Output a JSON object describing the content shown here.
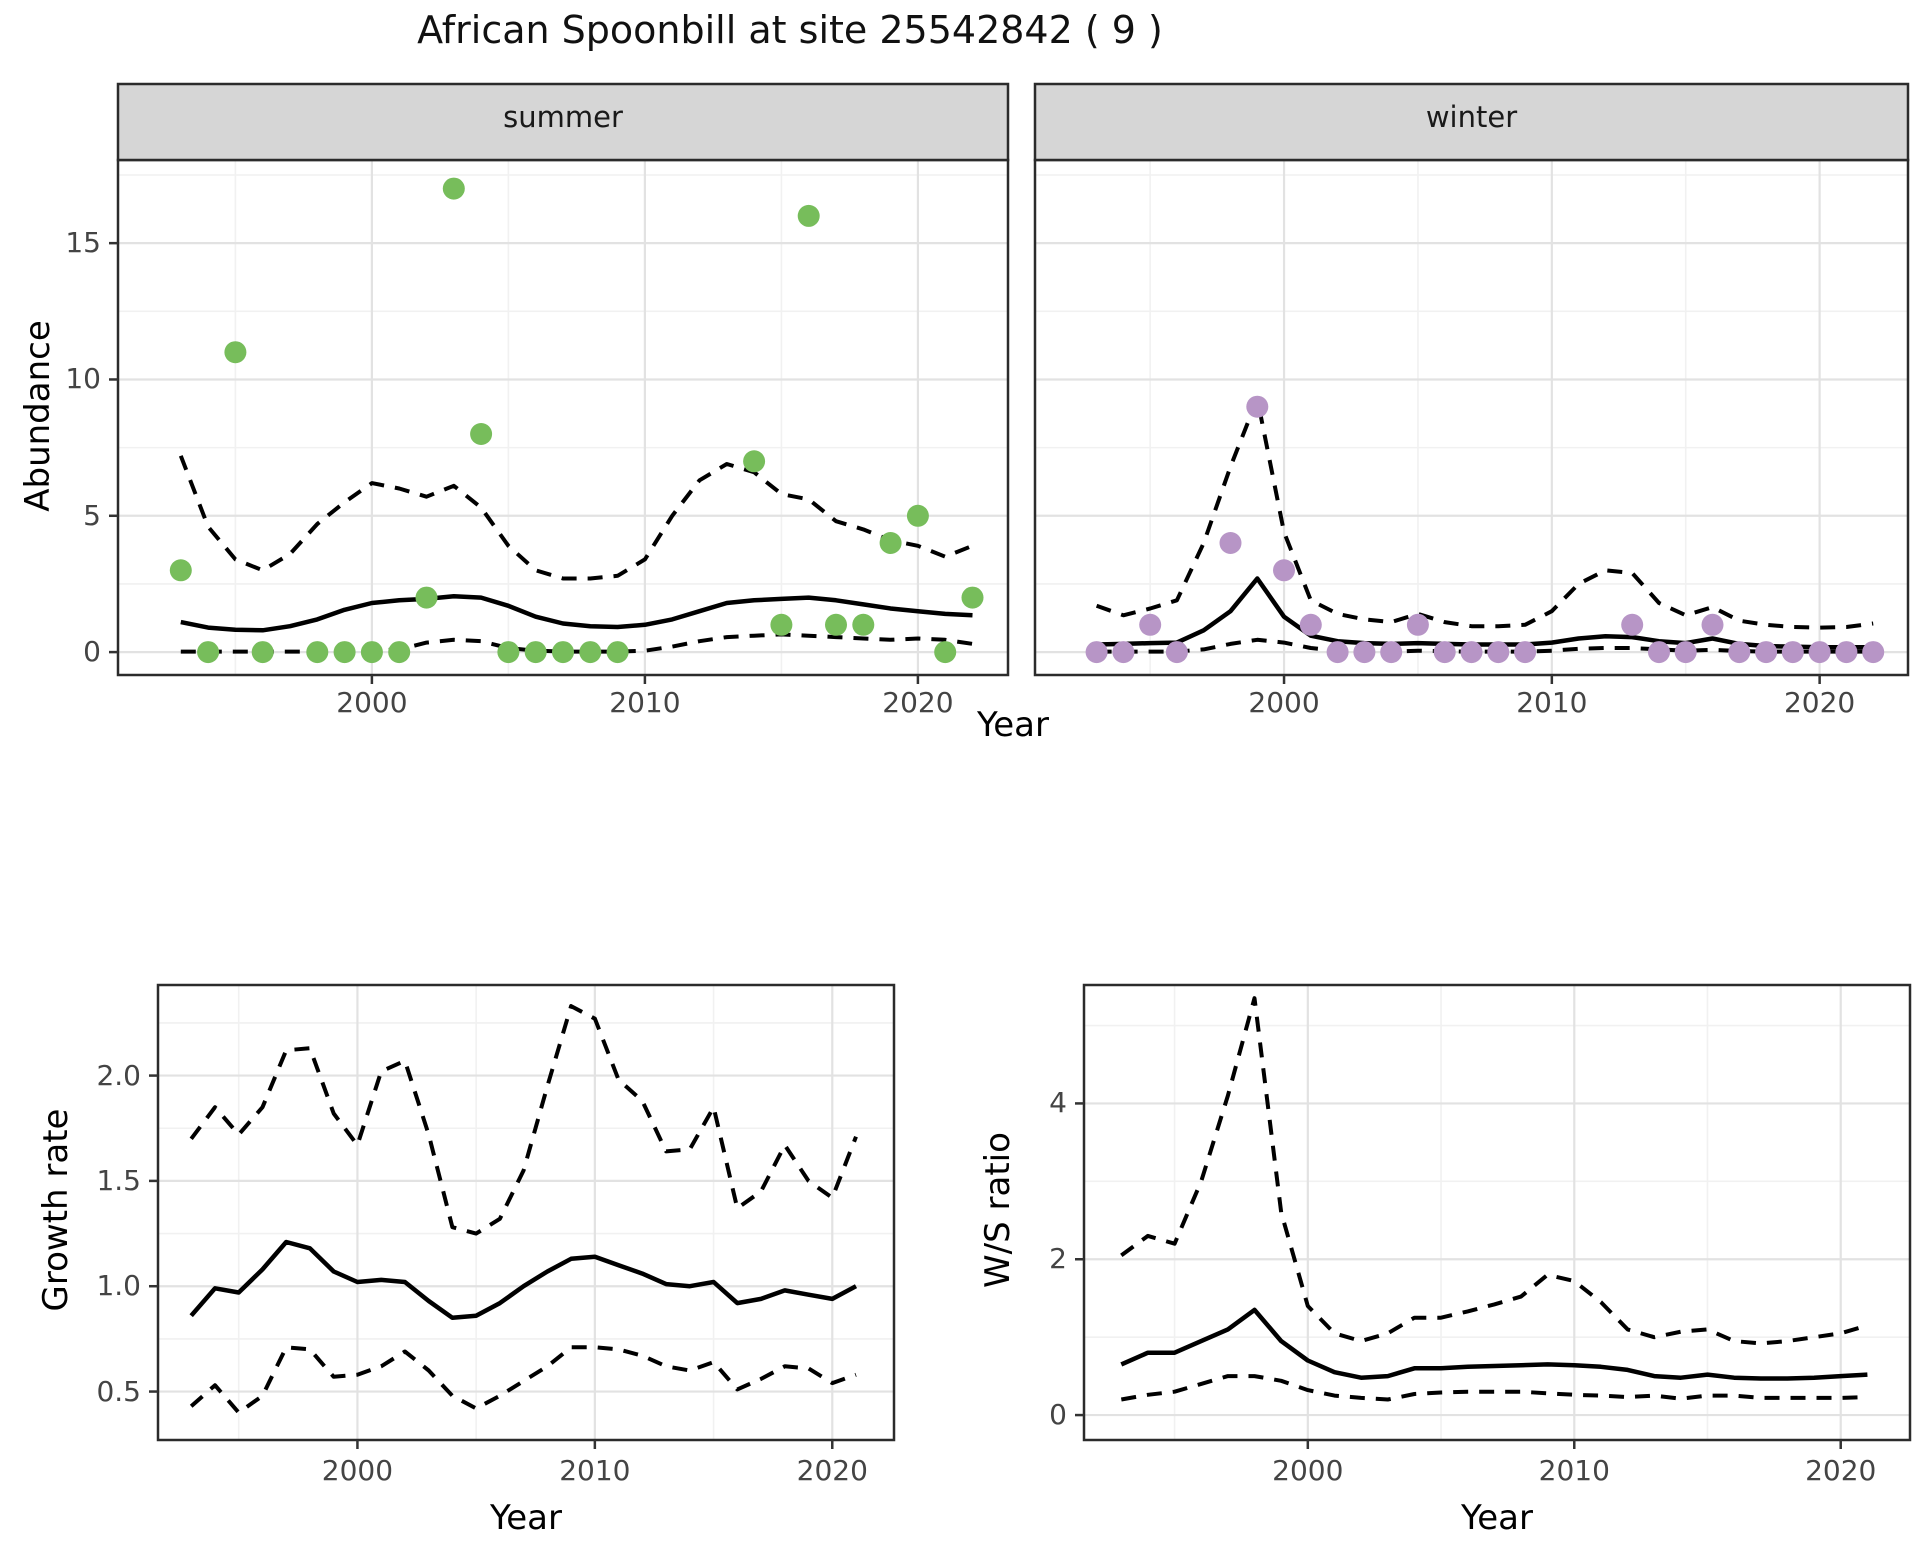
{
  "title": "African Spoonbill at site 25542842 ( 9 )",
  "colors": {
    "summer_point": "#77bd5b",
    "winter_point": "#b795c6",
    "strip_bg": "#d6d6d6",
    "panel_bg": "#ffffff",
    "grid_major": "#e2e2e2",
    "grid_minor": "#f1f1f1",
    "panel_border": "#2b2b2b",
    "tick_mark": "#333333",
    "axis_text": "#444444",
    "line": "#000000"
  },
  "chart_data": [
    {
      "id": "abundance-summer",
      "type": "scatter",
      "facet_label": "summer",
      "xlabel": "Year",
      "ylabel": "Abundance",
      "xlim": [
        1990.7,
        2023.3
      ],
      "ylim": [
        -0.84,
        18.05
      ],
      "x_ticks": {
        "values": [
          2000,
          2010,
          2020
        ],
        "labels": [
          "2000",
          "2010",
          "2020"
        ]
      },
      "x_minor": [
        1995,
        2005,
        2015
      ],
      "y_ticks": {
        "values": [
          0,
          5,
          10,
          15
        ],
        "labels": [
          "0",
          "5",
          "10",
          "15"
        ]
      },
      "y_minor": [
        2.5,
        7.5,
        12.5,
        17.5
      ],
      "points": {
        "years": [
          1993,
          1994,
          1995,
          1996,
          1998,
          1999,
          2000,
          2001,
          2002,
          2003,
          2004,
          2005,
          2006,
          2007,
          2008,
          2009,
          2014,
          2015,
          2016,
          2017,
          2018,
          2019,
          2020,
          2021,
          2022
        ],
        "values": [
          3,
          0,
          11,
          0,
          0,
          0,
          0,
          0,
          2,
          17,
          8,
          0,
          0,
          0,
          0,
          0,
          7,
          1,
          16,
          1,
          1,
          4,
          5,
          0,
          2
        ]
      },
      "lines": {
        "years": [
          1993,
          1994,
          1995,
          1996,
          1997,
          1998,
          1999,
          2000,
          2001,
          2002,
          2003,
          2004,
          2005,
          2006,
          2007,
          2008,
          2009,
          2010,
          2011,
          2012,
          2013,
          2014,
          2015,
          2016,
          2017,
          2018,
          2019,
          2020,
          2021,
          2022
        ],
        "mean": [
          1.1,
          0.9,
          0.82,
          0.8,
          0.95,
          1.2,
          1.55,
          1.8,
          1.9,
          1.95,
          2.05,
          2.0,
          1.7,
          1.3,
          1.05,
          0.95,
          0.92,
          1.0,
          1.2,
          1.5,
          1.8,
          1.9,
          1.95,
          2.0,
          1.9,
          1.75,
          1.6,
          1.5,
          1.4,
          1.35
        ],
        "upper": [
          7.2,
          4.6,
          3.4,
          3.0,
          3.6,
          4.7,
          5.5,
          6.2,
          6.0,
          5.7,
          6.1,
          5.3,
          3.9,
          3.0,
          2.7,
          2.7,
          2.8,
          3.4,
          5.0,
          6.3,
          6.9,
          6.6,
          5.8,
          5.6,
          4.8,
          4.5,
          4.1,
          3.9,
          3.5,
          3.9
        ],
        "lower": [
          0.02,
          0.02,
          0.02,
          0.02,
          0.02,
          0.02,
          0.02,
          0.05,
          0.1,
          0.35,
          0.45,
          0.4,
          0.15,
          0.05,
          0.02,
          0.02,
          0.02,
          0.05,
          0.2,
          0.4,
          0.55,
          0.6,
          0.65,
          0.6,
          0.55,
          0.5,
          0.45,
          0.5,
          0.45,
          0.3
        ]
      }
    },
    {
      "id": "abundance-winter",
      "type": "scatter",
      "facet_label": "winter",
      "xlabel": "Year",
      "ylabel": "Abundance",
      "xlim": [
        1990.7,
        2023.3
      ],
      "ylim": [
        -0.84,
        18.05
      ],
      "x_ticks": {
        "values": [
          2000,
          2010,
          2020
        ],
        "labels": [
          "2000",
          "2010",
          "2020"
        ]
      },
      "x_minor": [
        1995,
        2005,
        2015
      ],
      "y_ticks": {
        "values": [
          0,
          5,
          10,
          15
        ],
        "labels": [
          "0",
          "5",
          "10",
          "15"
        ]
      },
      "y_minor": [
        2.5,
        7.5,
        12.5,
        17.5
      ],
      "points": {
        "years": [
          1993,
          1994,
          1995,
          1996,
          1998,
          1999,
          2000,
          2001,
          2002,
          2003,
          2004,
          2005,
          2006,
          2007,
          2008,
          2009,
          2013,
          2014,
          2015,
          2016,
          2017,
          2018,
          2019,
          2020,
          2021,
          2022
        ],
        "values": [
          0,
          0,
          1,
          0,
          4,
          9,
          3,
          1,
          0,
          0,
          0,
          1,
          0,
          0,
          0,
          0,
          1,
          0,
          0,
          1,
          0,
          0,
          0,
          0,
          0,
          0
        ]
      },
      "lines": {
        "years": [
          1993,
          1994,
          1995,
          1996,
          1997,
          1998,
          1999,
          2000,
          2001,
          2002,
          2003,
          2004,
          2005,
          2006,
          2007,
          2008,
          2009,
          2010,
          2011,
          2012,
          2013,
          2014,
          2015,
          2016,
          2017,
          2018,
          2019,
          2020,
          2021,
          2022
        ],
        "mean": [
          0.28,
          0.3,
          0.33,
          0.35,
          0.8,
          1.5,
          2.7,
          1.3,
          0.6,
          0.4,
          0.33,
          0.3,
          0.33,
          0.3,
          0.28,
          0.28,
          0.28,
          0.35,
          0.5,
          0.58,
          0.55,
          0.4,
          0.33,
          0.5,
          0.3,
          0.22,
          0.2,
          0.18,
          0.18,
          0.18
        ],
        "upper": [
          1.7,
          1.35,
          1.6,
          1.9,
          4.0,
          6.8,
          9.3,
          4.4,
          1.9,
          1.4,
          1.2,
          1.1,
          1.4,
          1.1,
          0.95,
          0.95,
          1.0,
          1.5,
          2.5,
          3.0,
          2.9,
          1.8,
          1.35,
          1.65,
          1.15,
          1.0,
          0.92,
          0.9,
          0.92,
          1.05
        ],
        "lower": [
          0.02,
          0.02,
          0.02,
          0.02,
          0.1,
          0.3,
          0.45,
          0.35,
          0.15,
          0.05,
          0.03,
          0.02,
          0.05,
          0.03,
          0.02,
          0.02,
          0.02,
          0.05,
          0.12,
          0.15,
          0.15,
          0.1,
          0.05,
          0.08,
          0.04,
          0.02,
          0.02,
          0.02,
          0.02,
          0.02
        ]
      }
    },
    {
      "id": "growth-rate",
      "type": "line",
      "facet_label": "",
      "xlabel": "Year",
      "ylabel": "Growth rate",
      "xlim": [
        1991.6,
        2022.6
      ],
      "ylim": [
        0.27,
        2.43
      ],
      "x_ticks": {
        "values": [
          2000,
          2010,
          2020
        ],
        "labels": [
          "2000",
          "2010",
          "2020"
        ]
      },
      "x_minor": [
        1995,
        2005,
        2015
      ],
      "y_ticks": {
        "values": [
          0.5,
          1.0,
          1.5,
          2.0
        ],
        "labels": [
          "0.5",
          "1.0",
          "1.5",
          "2.0"
        ]
      },
      "y_minor": [
        0.75,
        1.25,
        1.75,
        2.25
      ],
      "points": null,
      "lines": {
        "years": [
          1993,
          1994,
          1995,
          1996,
          1997,
          1998,
          1999,
          2000,
          2001,
          2002,
          2003,
          2004,
          2005,
          2006,
          2007,
          2008,
          2009,
          2010,
          2011,
          2012,
          2013,
          2014,
          2015,
          2016,
          2017,
          2018,
          2019,
          2020,
          2021
        ],
        "mean": [
          0.86,
          0.99,
          0.97,
          1.08,
          1.21,
          1.18,
          1.07,
          1.02,
          1.03,
          1.02,
          0.93,
          0.85,
          0.86,
          0.92,
          1.0,
          1.07,
          1.13,
          1.14,
          1.1,
          1.06,
          1.01,
          1.0,
          1.02,
          0.92,
          0.94,
          0.98,
          0.96,
          0.94,
          1.0
        ],
        "upper": [
          1.7,
          1.85,
          1.72,
          1.85,
          2.12,
          2.13,
          1.82,
          1.67,
          2.02,
          2.07,
          1.72,
          1.28,
          1.25,
          1.32,
          1.55,
          1.95,
          2.33,
          2.27,
          1.98,
          1.88,
          1.64,
          1.65,
          1.85,
          1.37,
          1.45,
          1.67,
          1.5,
          1.42,
          1.71
        ],
        "lower": [
          0.43,
          0.53,
          0.4,
          0.48,
          0.71,
          0.7,
          0.57,
          0.58,
          0.62,
          0.69,
          0.6,
          0.48,
          0.42,
          0.48,
          0.55,
          0.62,
          0.71,
          0.71,
          0.7,
          0.67,
          0.62,
          0.6,
          0.64,
          0.51,
          0.56,
          0.62,
          0.61,
          0.54,
          0.58
        ]
      }
    },
    {
      "id": "ws-ratio",
      "type": "line",
      "facet_label": "",
      "xlabel": "Year",
      "ylabel": "W/S ratio",
      "xlim": [
        1991.6,
        2022.6
      ],
      "ylim": [
        -0.32,
        5.52
      ],
      "x_ticks": {
        "values": [
          2000,
          2010,
          2020
        ],
        "labels": [
          "2000",
          "2010",
          "2020"
        ]
      },
      "x_minor": [
        1995,
        2005,
        2015
      ],
      "y_ticks": {
        "values": [
          0,
          2,
          4
        ],
        "labels": [
          "0",
          "2",
          "4"
        ]
      },
      "y_minor": [
        1,
        3,
        5
      ],
      "points": null,
      "lines": {
        "years": [
          1993,
          1994,
          1995,
          1996,
          1997,
          1998,
          1999,
          2000,
          2001,
          2002,
          2003,
          2004,
          2005,
          2006,
          2007,
          2008,
          2009,
          2010,
          2011,
          2012,
          2013,
          2014,
          2015,
          2016,
          2017,
          2018,
          2019,
          2020,
          2021
        ],
        "mean": [
          0.65,
          0.8,
          0.8,
          0.95,
          1.1,
          1.35,
          0.95,
          0.7,
          0.55,
          0.48,
          0.5,
          0.6,
          0.6,
          0.62,
          0.63,
          0.64,
          0.65,
          0.64,
          0.62,
          0.58,
          0.5,
          0.48,
          0.52,
          0.48,
          0.47,
          0.47,
          0.48,
          0.5,
          0.52
        ],
        "upper": [
          2.05,
          2.3,
          2.2,
          3.0,
          4.1,
          5.35,
          2.6,
          1.4,
          1.05,
          0.95,
          1.05,
          1.25,
          1.25,
          1.33,
          1.42,
          1.52,
          1.8,
          1.72,
          1.45,
          1.1,
          1.0,
          1.07,
          1.1,
          0.95,
          0.92,
          0.95,
          1.0,
          1.05,
          1.15
        ],
        "lower": [
          0.2,
          0.26,
          0.3,
          0.4,
          0.5,
          0.5,
          0.44,
          0.32,
          0.25,
          0.22,
          0.2,
          0.27,
          0.29,
          0.3,
          0.3,
          0.3,
          0.28,
          0.26,
          0.25,
          0.23,
          0.25,
          0.21,
          0.25,
          0.25,
          0.22,
          0.22,
          0.22,
          0.22,
          0.23
        ]
      }
    }
  ]
}
